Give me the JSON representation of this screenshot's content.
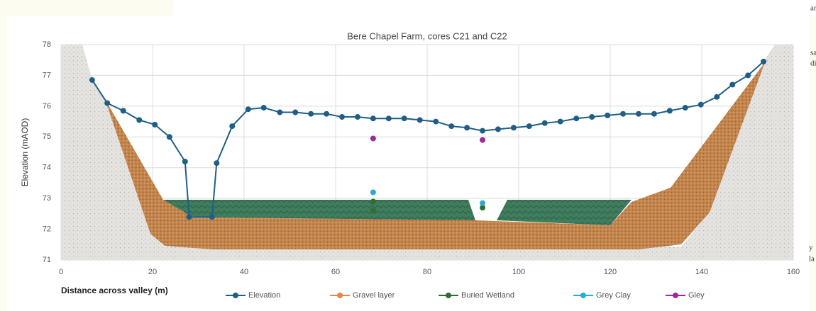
{
  "chart_data": {
    "type": "line",
    "title": "Bere Chapel Farm, cores C21 and C22",
    "xlabel": "Distance across valley (m)",
    "ylabel": "Elevation (mAOD)",
    "xlim": [
      0,
      160
    ],
    "xticks": [
      0,
      20,
      40,
      60,
      80,
      100,
      120,
      140,
      160
    ],
    "ylim": [
      71,
      78
    ],
    "yticks": [
      71,
      72,
      73,
      74,
      75,
      76,
      77,
      78
    ],
    "grid": true,
    "legend": "bottom",
    "series": [
      {
        "name": "Elevation",
        "color": "#1f5f86",
        "line": true,
        "x": [
          6.8,
          10.1,
          13.6,
          17.1,
          20.5,
          23.7,
          27.1,
          28,
          33,
          34.0,
          37.4,
          40.9,
          44.3,
          47.8,
          51.2,
          54.6,
          58.0,
          61.4,
          64.8,
          68.2,
          71.6,
          75.0,
          78.4,
          81.9,
          85.3,
          88.7,
          92.1,
          95.5,
          98.9,
          102.3,
          105.7,
          109.1,
          112.6,
          116.0,
          119.4,
          122.8,
          126.2,
          129.6,
          133.0,
          136.4,
          139.8,
          143.3,
          146.7,
          150.1,
          153.5
        ],
        "values": [
          76.85,
          76.1,
          75.85,
          75.55,
          75.4,
          75.0,
          74.2,
          72.4,
          72.4,
          74.15,
          75.35,
          75.9,
          75.95,
          75.8,
          75.8,
          75.75,
          75.75,
          75.65,
          75.65,
          75.6,
          75.6,
          75.6,
          75.55,
          75.5,
          75.35,
          75.3,
          75.2,
          75.25,
          75.3,
          75.35,
          75.45,
          75.5,
          75.6,
          75.65,
          75.7,
          75.75,
          75.75,
          75.75,
          75.85,
          75.95,
          76.05,
          76.3,
          76.7,
          77.0,
          77.45
        ]
      },
      {
        "name": "Gravel layer",
        "color": "#e8834a",
        "line": false,
        "x": [],
        "values": []
      },
      {
        "name": "Buried Wetland",
        "color": "#2e6e2e",
        "line": false,
        "x": [
          68.2,
          68.2,
          92.1
        ],
        "values": [
          72.9,
          72.6,
          72.7
        ]
      },
      {
        "name": "Grey Clay",
        "color": "#2aa8d8",
        "line": false,
        "x": [
          68.2,
          92.1
        ],
        "values": [
          73.2,
          72.85
        ]
      },
      {
        "name": "Gley",
        "color": "#a0289a",
        "line": false,
        "x": [
          68.2,
          92.1
        ],
        "values": [
          74.95,
          74.9
        ]
      }
    ]
  },
  "fragments": [
    "an",
    "sa",
    "di",
    "y",
    "la"
  ]
}
